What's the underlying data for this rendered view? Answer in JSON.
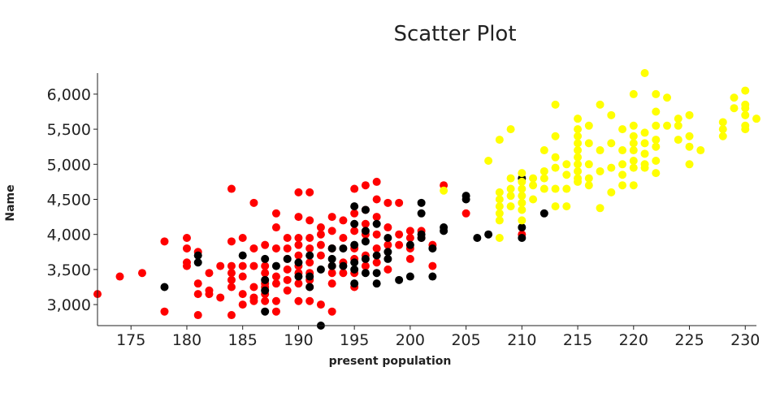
{
  "chart_data": {
    "type": "scatter",
    "title": "Scatter Plot",
    "xlabel": "present population",
    "ylabel": "Name",
    "xlim": [
      172,
      231
    ],
    "ylim": [
      2700,
      6300
    ],
    "xticks": [
      175,
      180,
      185,
      190,
      195,
      200,
      205,
      210,
      215,
      220,
      225,
      230
    ],
    "yticks": [
      3000,
      3500,
      4000,
      4500,
      5000,
      5500,
      6000
    ],
    "xtick_labels": [
      "175",
      "180",
      "185",
      "190",
      "195",
      "200",
      "205",
      "210",
      "215",
      "220",
      "225",
      "230"
    ],
    "ytick_labels": [
      "3,000",
      "3,500",
      "4,000",
      "4,500",
      "5,000",
      "5,500",
      "6,000"
    ],
    "grid": false,
    "legend": "none",
    "series": [
      {
        "color": "#ff0000",
        "points": [
          [
            172,
            3150
          ],
          [
            174,
            3400
          ],
          [
            176,
            3450
          ],
          [
            178,
            3900
          ],
          [
            178,
            2900
          ],
          [
            180,
            3950
          ],
          [
            180,
            3800
          ],
          [
            180,
            3600
          ],
          [
            180,
            3550
          ],
          [
            181,
            3300
          ],
          [
            181,
            3150
          ],
          [
            181,
            2850
          ],
          [
            181,
            3750
          ],
          [
            182,
            3200
          ],
          [
            182,
            3150
          ],
          [
            182,
            3450
          ],
          [
            183,
            3550
          ],
          [
            183,
            3100
          ],
          [
            184,
            4650
          ],
          [
            184,
            3900
          ],
          [
            184,
            3550
          ],
          [
            184,
            3450
          ],
          [
            184,
            3350
          ],
          [
            184,
            3250
          ],
          [
            184,
            2850
          ],
          [
            185,
            3950
          ],
          [
            185,
            3550
          ],
          [
            185,
            3400
          ],
          [
            185,
            3150
          ],
          [
            185,
            3000
          ],
          [
            186,
            4450
          ],
          [
            186,
            3800
          ],
          [
            186,
            3550
          ],
          [
            186,
            3250
          ],
          [
            186,
            3100
          ],
          [
            186,
            3050
          ],
          [
            187,
            3850
          ],
          [
            187,
            3550
          ],
          [
            187,
            3450
          ],
          [
            187,
            3300
          ],
          [
            187,
            3250
          ],
          [
            187,
            3150
          ],
          [
            187,
            3050
          ],
          [
            188,
            4300
          ],
          [
            188,
            4100
          ],
          [
            188,
            3800
          ],
          [
            188,
            3400
          ],
          [
            188,
            3300
          ],
          [
            188,
            3050
          ],
          [
            188,
            2900
          ],
          [
            189,
            3950
          ],
          [
            189,
            3800
          ],
          [
            189,
            3650
          ],
          [
            189,
            3500
          ],
          [
            189,
            3350
          ],
          [
            189,
            3200
          ],
          [
            190,
            4600
          ],
          [
            190,
            4250
          ],
          [
            190,
            3950
          ],
          [
            190,
            3850
          ],
          [
            190,
            3700
          ],
          [
            190,
            3550
          ],
          [
            190,
            3450
          ],
          [
            190,
            3300
          ],
          [
            190,
            3050
          ],
          [
            191,
            4600
          ],
          [
            191,
            4200
          ],
          [
            191,
            3950
          ],
          [
            191,
            3800
          ],
          [
            191,
            3600
          ],
          [
            191,
            3450
          ],
          [
            191,
            3350
          ],
          [
            191,
            3250
          ],
          [
            191,
            3050
          ],
          [
            192,
            4100
          ],
          [
            192,
            4000
          ],
          [
            192,
            3850
          ],
          [
            192,
            3700
          ],
          [
            192,
            3000
          ],
          [
            193,
            4250
          ],
          [
            193,
            4050
          ],
          [
            193,
            3800
          ],
          [
            193,
            3550
          ],
          [
            193,
            3450
          ],
          [
            193,
            3300
          ],
          [
            193,
            2900
          ],
          [
            194,
            4200
          ],
          [
            194,
            3950
          ],
          [
            194,
            3600
          ],
          [
            194,
            3450
          ],
          [
            195,
            4650
          ],
          [
            195,
            4300
          ],
          [
            195,
            4050
          ],
          [
            195,
            3800
          ],
          [
            195,
            3650
          ],
          [
            195,
            3450
          ],
          [
            195,
            3250
          ],
          [
            196,
            4700
          ],
          [
            196,
            4350
          ],
          [
            196,
            4150
          ],
          [
            196,
            4000
          ],
          [
            196,
            3700
          ],
          [
            196,
            3550
          ],
          [
            197,
            4750
          ],
          [
            197,
            4500
          ],
          [
            197,
            4250
          ],
          [
            197,
            4000
          ],
          [
            197,
            3800
          ],
          [
            197,
            3600
          ],
          [
            198,
            4450
          ],
          [
            198,
            4100
          ],
          [
            198,
            3850
          ],
          [
            198,
            3500
          ],
          [
            199,
            4450
          ],
          [
            199,
            4000
          ],
          [
            199,
            3850
          ],
          [
            200,
            4050
          ],
          [
            200,
            3950
          ],
          [
            200,
            3800
          ],
          [
            200,
            3650
          ],
          [
            201,
            4050
          ],
          [
            201,
            3950
          ],
          [
            202,
            3850
          ],
          [
            202,
            3550
          ],
          [
            203,
            4700
          ],
          [
            205,
            4300
          ],
          [
            210,
            4000
          ]
        ]
      },
      {
        "color": "#000000",
        "points": [
          [
            178,
            3250
          ],
          [
            181,
            3700
          ],
          [
            181,
            3600
          ],
          [
            185,
            3700
          ],
          [
            187,
            3650
          ],
          [
            187,
            3350
          ],
          [
            187,
            3200
          ],
          [
            187,
            2900
          ],
          [
            188,
            3550
          ],
          [
            189,
            3650
          ],
          [
            190,
            3600
          ],
          [
            190,
            3400
          ],
          [
            191,
            3700
          ],
          [
            191,
            3400
          ],
          [
            191,
            3250
          ],
          [
            192,
            3500
          ],
          [
            192,
            2700
          ],
          [
            193,
            3800
          ],
          [
            193,
            3650
          ],
          [
            193,
            3550
          ],
          [
            194,
            3800
          ],
          [
            194,
            3550
          ],
          [
            195,
            4400
          ],
          [
            195,
            4150
          ],
          [
            195,
            3850
          ],
          [
            195,
            3600
          ],
          [
            195,
            3500
          ],
          [
            195,
            3300
          ],
          [
            196,
            4350
          ],
          [
            196,
            4050
          ],
          [
            196,
            3900
          ],
          [
            196,
            3650
          ],
          [
            196,
            3450
          ],
          [
            197,
            4150
          ],
          [
            197,
            3700
          ],
          [
            197,
            3450
          ],
          [
            197,
            3300
          ],
          [
            198,
            3950
          ],
          [
            198,
            3750
          ],
          [
            198,
            3650
          ],
          [
            199,
            3350
          ],
          [
            200,
            3400
          ],
          [
            200,
            3850
          ],
          [
            201,
            4450
          ],
          [
            201,
            4300
          ],
          [
            201,
            4000
          ],
          [
            201,
            3950
          ],
          [
            202,
            3800
          ],
          [
            202,
            3400
          ],
          [
            203,
            4100
          ],
          [
            203,
            4050
          ],
          [
            205,
            4550
          ],
          [
            205,
            4500
          ],
          [
            206,
            3950
          ],
          [
            207,
            4000
          ],
          [
            210,
            4800
          ],
          [
            210,
            4100
          ],
          [
            210,
            3950
          ],
          [
            212,
            4300
          ]
        ]
      },
      {
        "color": "#ffff00",
        "points": [
          [
            203,
            4625
          ],
          [
            207,
            5050
          ],
          [
            208,
            5350
          ],
          [
            208,
            4600
          ],
          [
            208,
            4500
          ],
          [
            208,
            4400
          ],
          [
            208,
            4300
          ],
          [
            208,
            4200
          ],
          [
            208,
            3950
          ],
          [
            209,
            5500
          ],
          [
            209,
            4800
          ],
          [
            209,
            4650
          ],
          [
            209,
            4550
          ],
          [
            209,
            4400
          ],
          [
            210,
            4875
          ],
          [
            210,
            4750
          ],
          [
            210,
            4650
          ],
          [
            210,
            4550
          ],
          [
            210,
            4450
          ],
          [
            210,
            4350
          ],
          [
            210,
            4200
          ],
          [
            211,
            4700
          ],
          [
            211,
            4500
          ],
          [
            211,
            4800
          ],
          [
            212,
            5200
          ],
          [
            212,
            4900
          ],
          [
            212,
            4800
          ],
          [
            212,
            4650
          ],
          [
            213,
            5850
          ],
          [
            213,
            5400
          ],
          [
            213,
            5100
          ],
          [
            213,
            4950
          ],
          [
            213,
            4650
          ],
          [
            213,
            4400
          ],
          [
            214,
            5000
          ],
          [
            214,
            4850
          ],
          [
            214,
            4650
          ],
          [
            214,
            4400
          ],
          [
            215,
            5650
          ],
          [
            215,
            5500
          ],
          [
            215,
            5400
          ],
          [
            215,
            5300
          ],
          [
            215,
            5200
          ],
          [
            215,
            5100
          ],
          [
            215,
            5000
          ],
          [
            215,
            4900
          ],
          [
            215,
            4800
          ],
          [
            215,
            4750
          ],
          [
            216,
            5550
          ],
          [
            216,
            5300
          ],
          [
            216,
            5000
          ],
          [
            216,
            4800
          ],
          [
            216,
            4700
          ],
          [
            217,
            5850
          ],
          [
            217,
            5200
          ],
          [
            217,
            4900
          ],
          [
            217,
            4375
          ],
          [
            218,
            5700
          ],
          [
            218,
            5300
          ],
          [
            218,
            4950
          ],
          [
            218,
            4600
          ],
          [
            219,
            5500
          ],
          [
            219,
            5200
          ],
          [
            219,
            5000
          ],
          [
            219,
            4850
          ],
          [
            219,
            4700
          ],
          [
            220,
            6000
          ],
          [
            220,
            5550
          ],
          [
            220,
            5400
          ],
          [
            220,
            5300
          ],
          [
            220,
            5200
          ],
          [
            220,
            5050
          ],
          [
            220,
            4950
          ],
          [
            220,
            4700
          ],
          [
            221,
            6300
          ],
          [
            221,
            5450
          ],
          [
            221,
            5300
          ],
          [
            221,
            5150
          ],
          [
            221,
            5000
          ],
          [
            221,
            4950
          ],
          [
            222,
            6000
          ],
          [
            222,
            5750
          ],
          [
            222,
            5550
          ],
          [
            222,
            5350
          ],
          [
            222,
            5250
          ],
          [
            222,
            5050
          ],
          [
            222,
            4875
          ],
          [
            223,
            5950
          ],
          [
            223,
            5550
          ],
          [
            224,
            5650
          ],
          [
            224,
            5550
          ],
          [
            224,
            5350
          ],
          [
            225,
            5700
          ],
          [
            225,
            5400
          ],
          [
            225,
            5250
          ],
          [
            225,
            5000
          ],
          [
            226,
            5200
          ],
          [
            228,
            5600
          ],
          [
            228,
            5500
          ],
          [
            228,
            5400
          ],
          [
            229,
            5950
          ],
          [
            229,
            5800
          ],
          [
            230,
            6050
          ],
          [
            230,
            5850
          ],
          [
            230,
            5800
          ],
          [
            230,
            5700
          ],
          [
            230,
            5550
          ],
          [
            230,
            5500
          ],
          [
            231,
            5650
          ]
        ]
      }
    ]
  }
}
